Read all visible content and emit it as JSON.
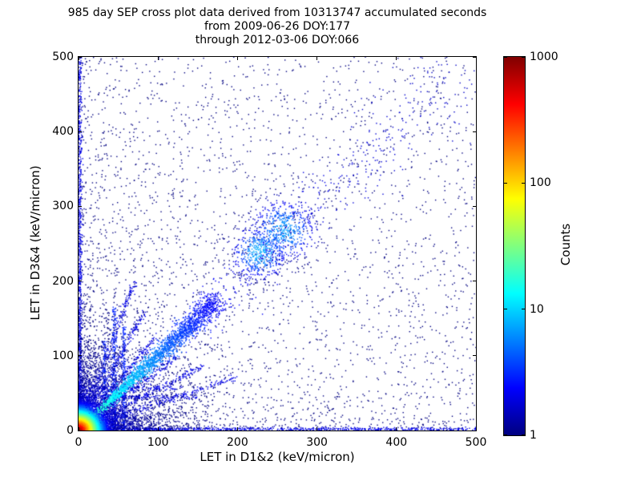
{
  "title": {
    "line1": "985 day SEP cross plot data derived from 10313747 accumulated seconds",
    "line2": "from 2009-06-26 DOY:177",
    "line3": "through 2012-03-06 DOY:066"
  },
  "chart_data": {
    "type": "scatter",
    "title": "985 day SEP cross plot data derived from 10313747 accumulated seconds from 2009-06-26 DOY:177 through 2012-03-06 DOY:066",
    "xlabel": "LET in D1&2 (keV/micron)",
    "ylabel": "LET in D3&4 (keV/micron)",
    "xlim": [
      0,
      500
    ],
    "ylim": [
      0,
      500
    ],
    "x_ticks": [
      0,
      100,
      200,
      300,
      400,
      500
    ],
    "y_ticks": [
      0,
      100,
      200,
      300,
      400,
      500
    ],
    "grid": false,
    "colorbar": {
      "label": "Counts",
      "scale": "log",
      "min": 1,
      "max": 1000,
      "tick_labels": [
        "1000",
        "100",
        "10",
        "1"
      ],
      "colormap": "jet",
      "colormap_stops": [
        {
          "pos": 0.0,
          "color": "#000080"
        },
        {
          "pos": 0.125,
          "color": "#0000ff"
        },
        {
          "pos": 0.375,
          "color": "#00ffff"
        },
        {
          "pos": 0.625,
          "color": "#ffff00"
        },
        {
          "pos": 0.875,
          "color": "#ff0000"
        },
        {
          "pos": 1.0,
          "color": "#800000"
        }
      ]
    },
    "features": [
      "very dense hot core near origin: red/orange counts ~1000 within ~10 keV/micron, yellow to ~15, green to ~22, cyan to ~35",
      "strong 1:1 diagonal correlation band from origin to ~170, continuing sparsely to 500",
      "diagonal cluster of enhanced density near (230-270, 230-270)",
      "vertical streaks near x~33, x~45, x~57 reaching y~120-165",
      "faint rays fanning out from the origin at multiple slopes",
      "dense dotted column hugging x~0 for all y and row hugging y~0 for all x",
      "sparse isolated single-count (dark blue) points scattered over the whole plane"
    ],
    "seed": 1234,
    "clusters": [
      {
        "type": "uniform",
        "n": 2400,
        "x1": 500,
        "y1": 500,
        "pow": 1.7,
        "c": 1
      },
      {
        "type": "uniform",
        "n": 900,
        "x1": 500,
        "y1": 500,
        "pow": 1.0,
        "c": 1
      },
      {
        "type": "vline",
        "x": 1.5,
        "y0": 0,
        "y1": 500,
        "n": 1000,
        "spread": 1.5,
        "c": 2,
        "pow": 1.5
      },
      {
        "type": "hline",
        "y": 1.5,
        "x0": 0,
        "x1": 500,
        "n": 900,
        "spread": 1.5,
        "c": 2,
        "pow": 1.5
      },
      {
        "type": "ray",
        "slope": 0.36,
        "n": 220,
        "len": 210,
        "spread": 2.2,
        "c": 2
      },
      {
        "type": "ray",
        "slope": 0.55,
        "n": 200,
        "len": 180,
        "spread": 2.2,
        "c": 2
      },
      {
        "type": "ray",
        "slope": 0.8,
        "n": 180,
        "len": 160,
        "spread": 2.2,
        "c": 2
      },
      {
        "type": "ray",
        "slope": 1.3,
        "n": 180,
        "len": 160,
        "spread": 2.2,
        "c": 2
      },
      {
        "type": "ray",
        "slope": 1.9,
        "n": 200,
        "len": 180,
        "spread": 2.2,
        "c": 2
      },
      {
        "type": "ray",
        "slope": 2.8,
        "n": 220,
        "len": 210,
        "spread": 2.2,
        "c": 2
      },
      {
        "type": "vline",
        "x": 33,
        "y0": 0,
        "y1": 120,
        "n": 160,
        "spread": 1.5,
        "c": 3,
        "pow": 1.2
      },
      {
        "type": "vline",
        "x": 45,
        "y0": 0,
        "y1": 165,
        "n": 260,
        "spread": 1.5,
        "c": 3,
        "pow": 1.2
      },
      {
        "type": "vline",
        "x": 57,
        "y0": 0,
        "y1": 140,
        "n": 200,
        "spread": 1.5,
        "c": 3,
        "pow": 1.2
      },
      {
        "type": "hline",
        "y": 45,
        "x0": 0,
        "x1": 150,
        "n": 150,
        "spread": 1.5,
        "c": 2,
        "pow": 1.2
      },
      {
        "type": "hline",
        "y": 57,
        "x0": 0,
        "x1": 130,
        "n": 120,
        "spread": 1.5,
        "c": 2,
        "pow": 1.2
      },
      {
        "type": "diag",
        "n": 650,
        "len": 500,
        "pow": 1.0,
        "spread_a": 5,
        "spread_b": 0.05,
        "c0": 2,
        "cf": 400
      },
      {
        "type": "gauss",
        "n": 450,
        "cx": 228,
        "cy": 238,
        "s": 17,
        "c0": 7
      },
      {
        "type": "gauss",
        "n": 500,
        "cx": 258,
        "cy": 268,
        "s": 20,
        "c0": 6
      },
      {
        "type": "exp2d",
        "n": 3200,
        "sx": 42,
        "sy": 42,
        "hot": 4,
        "falloff": 28
      },
      {
        "type": "diag",
        "n": 2000,
        "len": 175,
        "pow": 0.8,
        "spread_a": 1.2,
        "spread_b": 0.04,
        "c0": 28,
        "cf": 55
      },
      {
        "type": "exp2d",
        "n": 7000,
        "sx": 9,
        "sy": 9,
        "hot": 1200,
        "falloff": 5.5
      }
    ]
  }
}
